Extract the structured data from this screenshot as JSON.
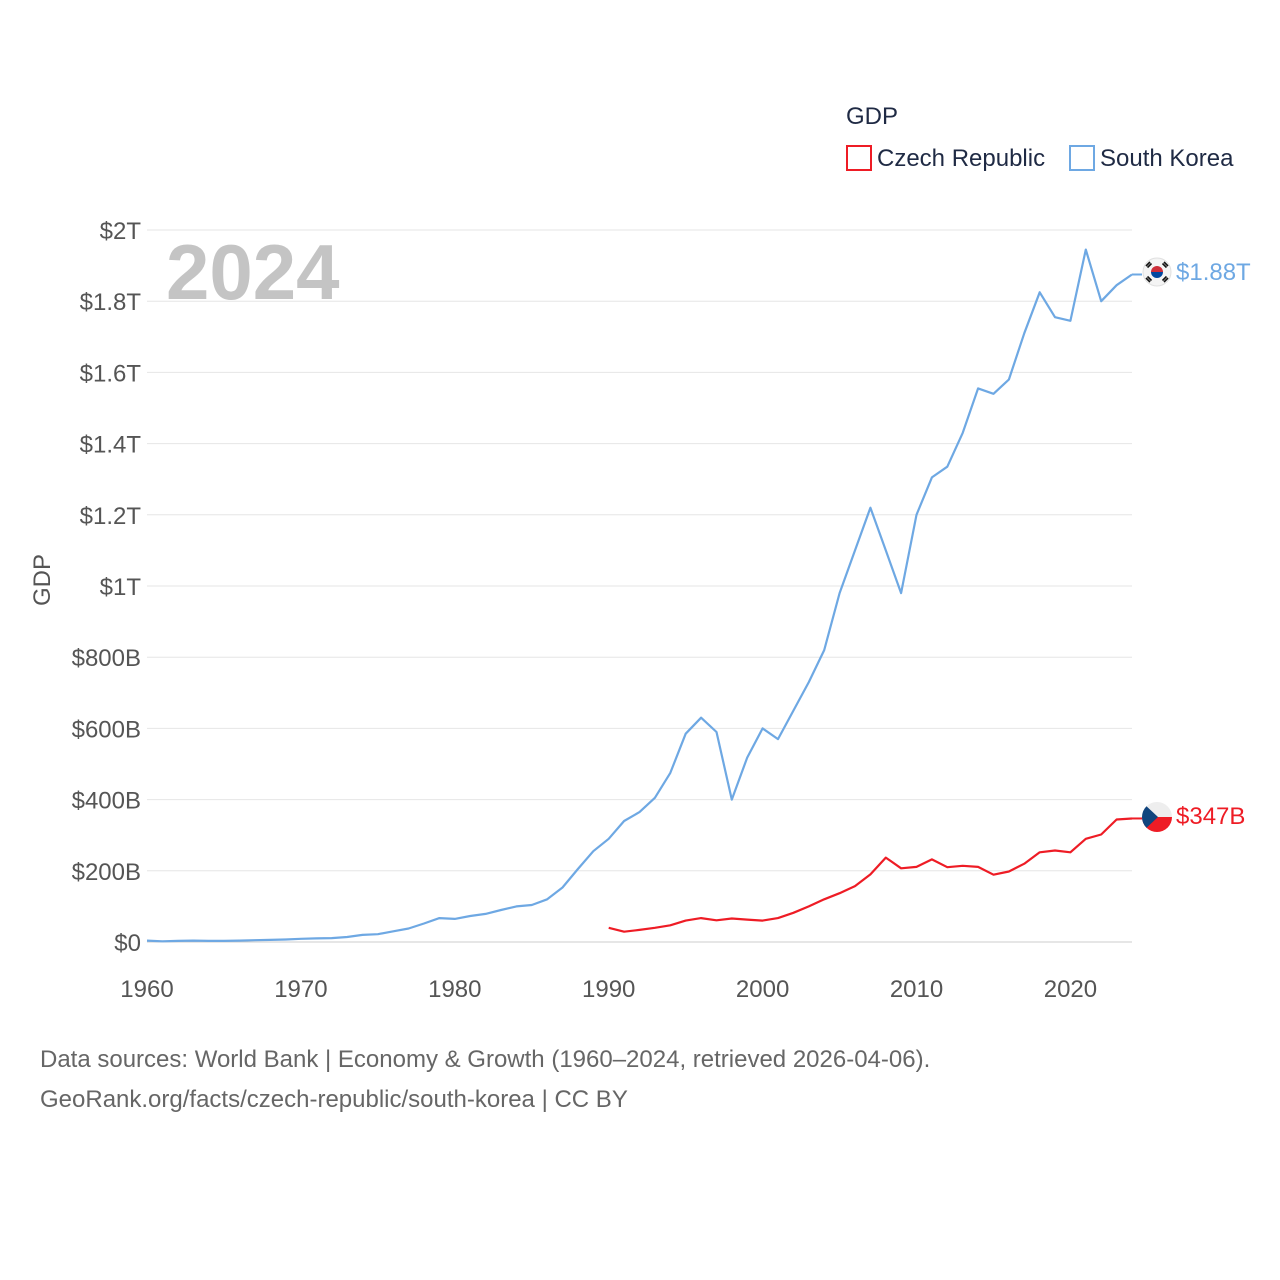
{
  "chart_data": {
    "type": "line",
    "title": "GDP",
    "xlabel": "",
    "ylabel": "GDP",
    "xlim": [
      1960,
      2024
    ],
    "ylim": [
      0,
      2000
    ],
    "value_unit": "billion USD",
    "current_year": "2024",
    "x_ticks": [
      {
        "value": 1960,
        "label": "1960"
      },
      {
        "value": 1970,
        "label": "1970"
      },
      {
        "value": 1980,
        "label": "1980"
      },
      {
        "value": 1990,
        "label": "1990"
      },
      {
        "value": 2000,
        "label": "2000"
      },
      {
        "value": 2010,
        "label": "2010"
      },
      {
        "value": 2020,
        "label": "2020"
      }
    ],
    "y_ticks": [
      {
        "value": 0,
        "label": "$0"
      },
      {
        "value": 200,
        "label": "$200B"
      },
      {
        "value": 400,
        "label": "$400B"
      },
      {
        "value": 600,
        "label": "$600B"
      },
      {
        "value": 800,
        "label": "$800B"
      },
      {
        "value": 1000,
        "label": "$1T"
      },
      {
        "value": 1200,
        "label": "$1.2T"
      },
      {
        "value": 1400,
        "label": "$1.4T"
      },
      {
        "value": 1600,
        "label": "$1.6T"
      },
      {
        "value": 1800,
        "label": "$1.8T"
      },
      {
        "value": 2000,
        "label": "$2T"
      }
    ],
    "grid": true,
    "legend_position": "top-right",
    "series": [
      {
        "name": "Czech Republic",
        "color": "#ee1c25",
        "flag": "czech-flag-icon",
        "end_label": "$347B",
        "x": [
          1990,
          1991,
          1992,
          1993,
          1994,
          1995,
          1996,
          1997,
          1998,
          1999,
          2000,
          2001,
          2002,
          2003,
          2004,
          2005,
          2006,
          2007,
          2008,
          2009,
          2010,
          2011,
          2012,
          2013,
          2014,
          2015,
          2016,
          2017,
          2018,
          2019,
          2020,
          2021,
          2022,
          2023,
          2024
        ],
        "values": [
          40,
          29,
          34,
          40,
          47,
          60,
          67,
          61,
          66,
          63,
          60,
          67,
          82,
          100,
          120,
          137,
          157,
          190,
          237,
          207,
          211,
          232,
          210,
          214,
          211,
          189,
          198,
          220,
          252,
          257,
          252,
          290,
          302,
          344,
          347
        ]
      },
      {
        "name": "South Korea",
        "color": "#6ea8e3",
        "flag": "south-korea-flag-icon",
        "end_label": "$1.88T",
        "x": [
          1960,
          1961,
          1962,
          1963,
          1964,
          1965,
          1966,
          1967,
          1968,
          1969,
          1970,
          1971,
          1972,
          1973,
          1974,
          1975,
          1976,
          1977,
          1978,
          1979,
          1980,
          1981,
          1982,
          1983,
          1984,
          1985,
          1986,
          1987,
          1988,
          1989,
          1990,
          1991,
          1992,
          1993,
          1994,
          1995,
          1996,
          1997,
          1998,
          1999,
          2000,
          2001,
          2002,
          2003,
          2004,
          2005,
          2006,
          2007,
          2008,
          2009,
          2010,
          2011,
          2012,
          2013,
          2014,
          2015,
          2016,
          2017,
          2018,
          2019,
          2020,
          2021,
          2022,
          2023,
          2024
        ],
        "values": [
          4,
          2,
          3,
          4,
          3,
          3,
          4,
          5,
          6,
          7,
          9,
          10,
          11,
          14,
          20,
          22,
          30,
          38,
          52,
          67,
          65,
          73,
          79,
          90,
          100,
          104,
          120,
          153,
          205,
          255,
          290,
          340,
          365,
          405,
          475,
          585,
          630,
          590,
          400,
          518,
          600,
          570,
          650,
          730,
          820,
          980,
          1100,
          1220,
          1100,
          980,
          1200,
          1305,
          1335,
          1430,
          1555,
          1540,
          1580,
          1710,
          1825,
          1755,
          1745,
          1945,
          1800,
          1845,
          1875
        ]
      }
    ]
  },
  "source": {
    "line1": "Data sources: World Bank | Economy & Growth (1960–2024, retrieved 2026-04-06).",
    "line2": "GeoRank.org/facts/czech-republic/south-korea | CC BY"
  }
}
